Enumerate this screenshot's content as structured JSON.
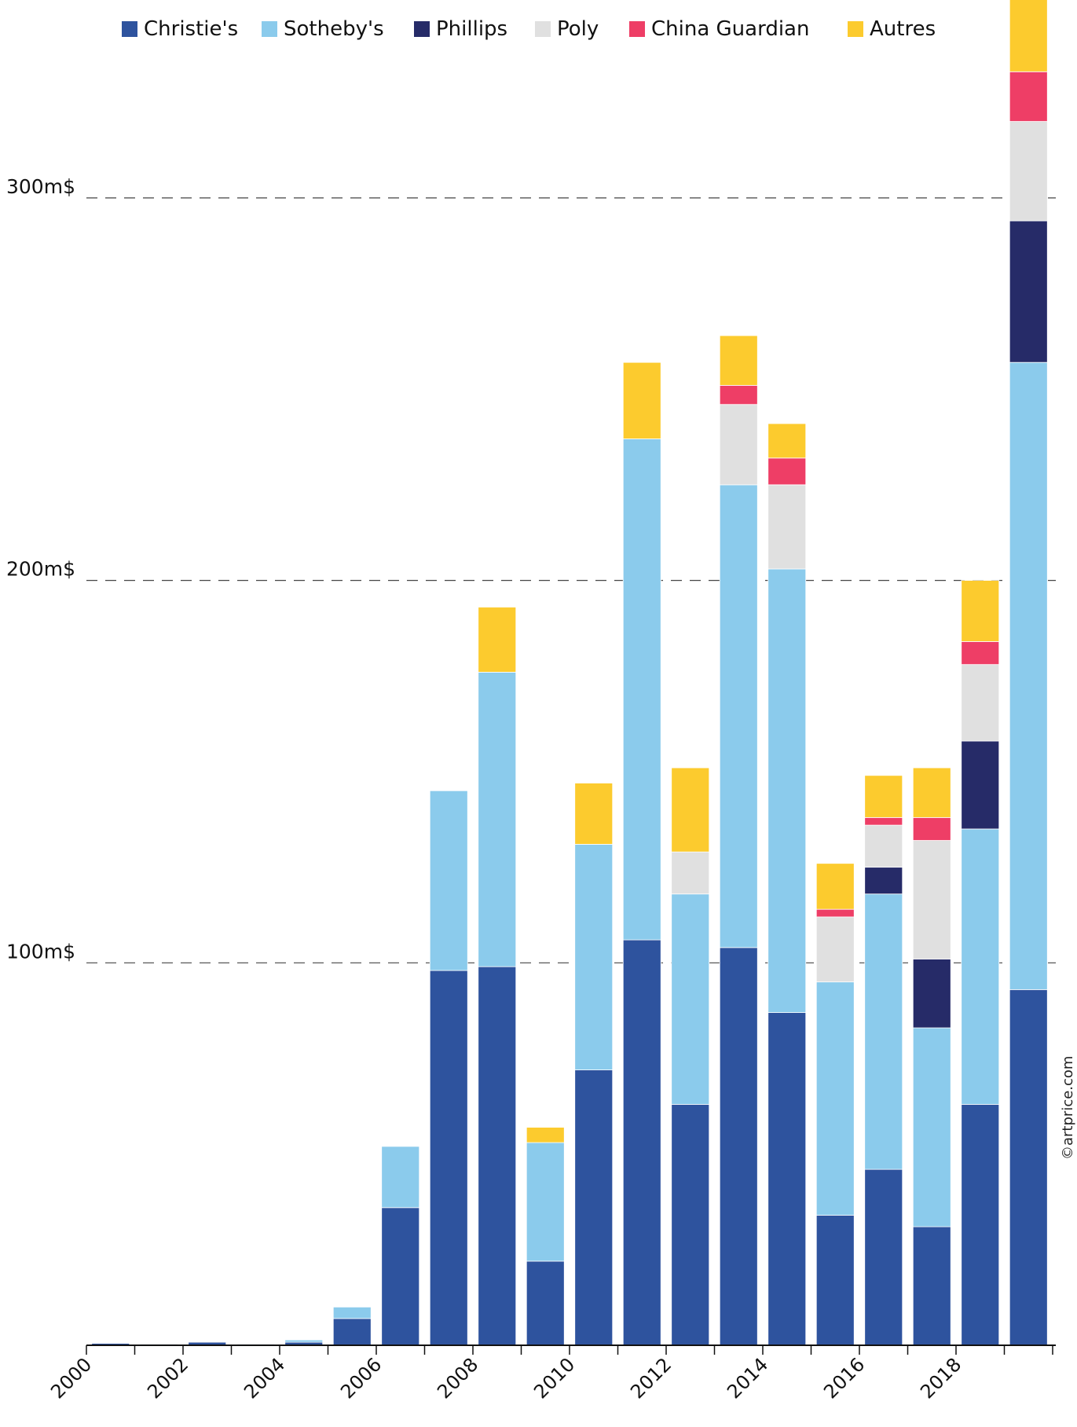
{
  "chart_data": {
    "type": "bar",
    "stacked": true,
    "categories": [
      "2000",
      "2001",
      "2002",
      "2003",
      "2004",
      "2005",
      "2006",
      "2007",
      "2008",
      "2009",
      "2010",
      "2011",
      "2012",
      "2013",
      "2014",
      "2015",
      "2016",
      "2017",
      "2018",
      "2019"
    ],
    "x_tick_labels": [
      "2000",
      "2002",
      "2004",
      "2006",
      "2008",
      "2010",
      "2012",
      "2014",
      "2016",
      "2018"
    ],
    "series": [
      {
        "name": "Christie's",
        "color": "#2e539e",
        "values": [
          0.5,
          0.3,
          0.8,
          0.3,
          0.8,
          7,
          36,
          98,
          99,
          22,
          72,
          106,
          63,
          104,
          87,
          34,
          46,
          31,
          63,
          93
        ]
      },
      {
        "name": "Sotheby's",
        "color": "#8bcbec",
        "values": [
          0,
          0,
          0,
          0,
          0.6,
          3,
          16,
          47,
          77,
          31,
          59,
          131,
          55,
          121,
          116,
          61,
          72,
          52,
          72,
          164
        ]
      },
      {
        "name": "Phillips",
        "color": "#262b68",
        "values": [
          0,
          0,
          0,
          0,
          0,
          0,
          0,
          0,
          0,
          0,
          0,
          0,
          0,
          0,
          0,
          0,
          7,
          18,
          23,
          37
        ]
      },
      {
        "name": "Poly",
        "color": "#e0e0e0",
        "values": [
          0,
          0,
          0,
          0,
          0,
          0,
          0,
          0,
          0,
          0,
          0,
          0,
          11,
          21,
          22,
          17,
          11,
          31,
          20,
          26
        ]
      },
      {
        "name": "China Guardian",
        "color": "#ee3e66",
        "values": [
          0,
          0,
          0,
          0,
          0,
          0,
          0,
          0,
          0,
          0,
          0,
          0,
          0,
          5,
          7,
          2,
          2,
          6,
          6,
          13
        ]
      },
      {
        "name": "Autres",
        "color": "#fccb2e",
        "values": [
          0,
          0,
          0,
          0,
          0,
          0,
          0,
          0,
          17,
          4,
          16,
          20,
          22,
          13,
          9,
          12,
          11,
          13,
          16,
          24
        ]
      }
    ],
    "y_ticks": [
      {
        "value": 100,
        "label": "100m$"
      },
      {
        "value": 200,
        "label": "200m$"
      },
      {
        "value": 300,
        "label": "300m$"
      }
    ],
    "ylim": [
      0,
      360
    ],
    "title": "",
    "xlabel": "",
    "ylabel": "",
    "grid": "horizontal dashed",
    "legend_position": "top"
  },
  "credit": "©artprice.com"
}
